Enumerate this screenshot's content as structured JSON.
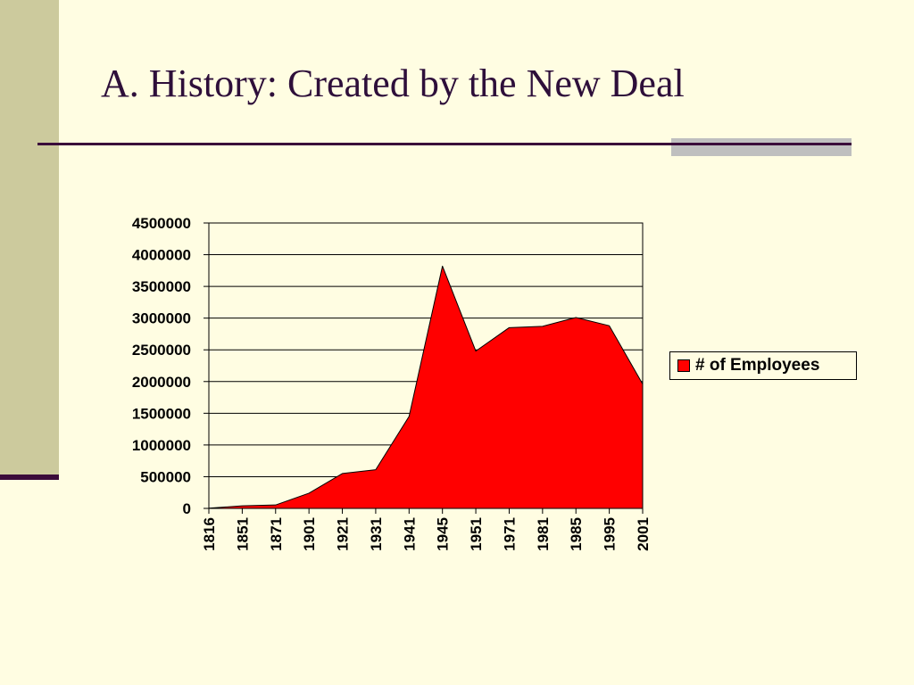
{
  "slide": {
    "title": "A. History: Created by the New Deal"
  },
  "colors": {
    "background": "#FFFDE2",
    "side_bar": "#CCCA9D",
    "accent_dark": "#3A0A3A",
    "rule_accent": "#BFBFBF",
    "area_fill": "#FF0000"
  },
  "chart_data": {
    "type": "area",
    "title": "",
    "xlabel": "",
    "ylabel": "",
    "categories": [
      "1816",
      "1851",
      "1871",
      "1901",
      "1921",
      "1931",
      "1941",
      "1945",
      "1951",
      "1971",
      "1981",
      "1985",
      "1995",
      "2001"
    ],
    "series": [
      {
        "name": "# of Employees",
        "values": [
          4000,
          40000,
          54000,
          240000,
          550000,
          610000,
          1450000,
          3820000,
          2480000,
          2850000,
          2870000,
          3010000,
          2880000,
          1960000
        ]
      }
    ],
    "y_ticks": [
      0,
      500000,
      1000000,
      1500000,
      2000000,
      2500000,
      3000000,
      3500000,
      4000000,
      4500000
    ],
    "ylim": [
      0,
      4500000
    ],
    "grid": "horizontal",
    "legend": {
      "position": "right",
      "label": "# of Employees"
    }
  }
}
